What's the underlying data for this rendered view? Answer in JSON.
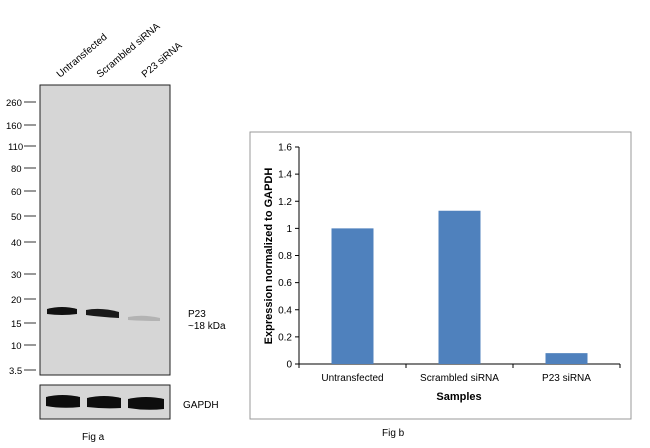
{
  "fig_a": {
    "caption": "Fig a",
    "lanes": [
      "Untransfected",
      "Scrambled siRNA",
      "P23  siRNA"
    ],
    "mw_markers": [
      "260",
      "160",
      "110",
      "80",
      "60",
      "50",
      "40",
      "30",
      "20",
      "15",
      "10",
      "3.5"
    ],
    "band_label_line1": "P23",
    "band_label_line2": "~18 kDa",
    "loading_control": "GAPDH"
  },
  "fig_b": {
    "caption": "Fig b"
  },
  "chart_data": {
    "type": "bar",
    "categories": [
      "Untransfected",
      "Scrambled siRNA",
      "P23 siRNA"
    ],
    "values": [
      1.0,
      1.13,
      0.08
    ],
    "xlabel": "Samples",
    "ylabel": "Expression normalized to GAPDH",
    "ylim": [
      0,
      1.6
    ],
    "yticks": [
      "0",
      "0.2",
      "0.4",
      "0.6",
      "0.8",
      "1",
      "1.2",
      "1.4",
      "1.6"
    ],
    "bar_color": "#4f81bd",
    "grid": false
  }
}
